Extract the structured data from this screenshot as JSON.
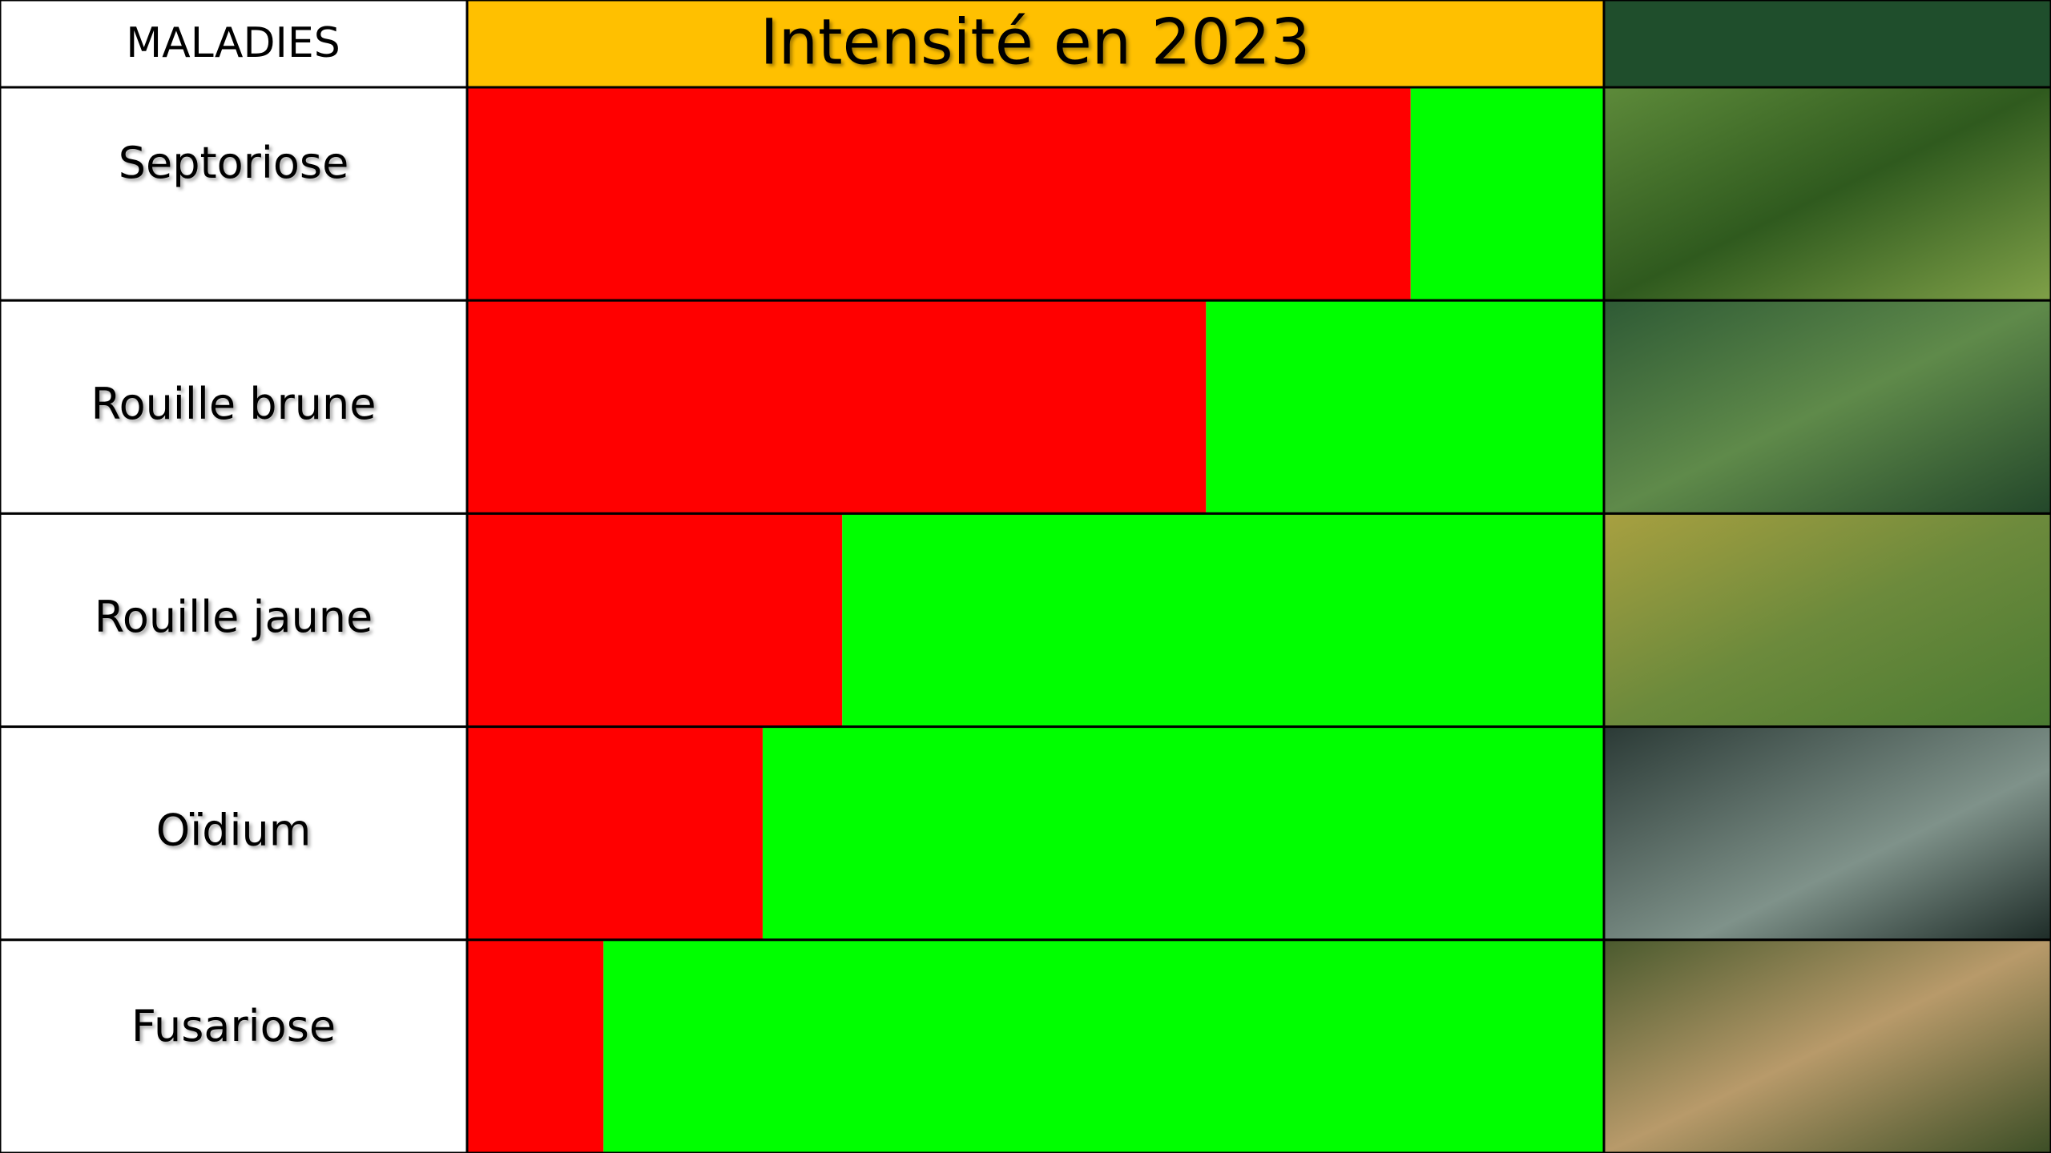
{
  "chart_data": {
    "type": "bar",
    "orientation": "horizontal",
    "stacked": true,
    "column_header": "MALADIES",
    "title": "Intensité en 2023",
    "categories": [
      "Septoriose",
      "Rouille brune",
      "Rouille jaune",
      "Oïdium",
      "Fusariose"
    ],
    "series": [
      {
        "color": "#ff0000",
        "values": [
          83,
          65,
          33,
          26,
          12
        ]
      },
      {
        "color": "#00ff00",
        "values": [
          17,
          35,
          67,
          74,
          88
        ]
      }
    ],
    "xlim": [
      0,
      100
    ]
  }
}
